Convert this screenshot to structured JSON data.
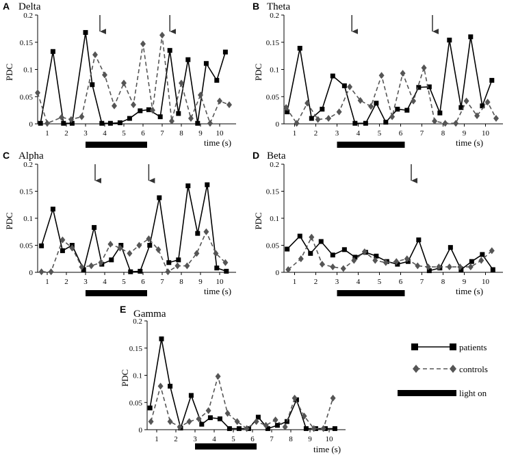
{
  "legend": {
    "patients": "patients",
    "controls": "controls",
    "light_on": "light on"
  },
  "chart_data": [
    {
      "type": "line",
      "panel": "A",
      "title": "Delta",
      "xlabel": "time (s)",
      "ylabel": "PDC",
      "ylim": [
        0,
        0.2
      ],
      "yticks": [
        "0",
        "0.05",
        "0.1",
        "0.15",
        "0.2"
      ],
      "xticks": [
        "1",
        "2",
        "3",
        "4",
        "5",
        "6",
        "7",
        "8",
        "9",
        "10"
      ],
      "xlim": [
        0,
        10
      ],
      "light_on": [
        3,
        6
      ],
      "arrows_x": [
        3.25,
        6.9
      ],
      "series": [
        {
          "name": "patients",
          "style": "solid",
          "marker": "square",
          "color": "#000000",
          "x": [
            0.15,
            0.8,
            1.35,
            1.8,
            2.5,
            2.85,
            3.35,
            3.8,
            4.3,
            4.8,
            5.35,
            5.8,
            6.4,
            6.9,
            7.35,
            7.85,
            8.35,
            8.8,
            9.35,
            9.8
          ],
          "y": [
            0.001,
            0.133,
            0.001,
            0.001,
            0.168,
            0.072,
            0.001,
            0.001,
            0.002,
            0.01,
            0.024,
            0.026,
            0.013,
            0.135,
            0.019,
            0.118,
            0.001,
            0.111,
            0.08,
            0.132
          ]
        },
        {
          "name": "controls",
          "style": "dashed",
          "marker": "diamond",
          "color": "#555555",
          "x": [
            0.0,
            0.5,
            1.25,
            1.75,
            2.3,
            3.0,
            3.5,
            4.0,
            4.5,
            5.0,
            5.5,
            6.0,
            6.5,
            7.0,
            7.5,
            8.0,
            8.5,
            9.0,
            9.5,
            10.0
          ],
          "y": [
            0.057,
            0.001,
            0.012,
            0.008,
            0.013,
            0.127,
            0.09,
            0.033,
            0.075,
            0.035,
            0.147,
            0.025,
            0.163,
            0.005,
            0.075,
            0.01,
            0.053,
            0.001,
            0.042,
            0.035
          ]
        }
      ]
    },
    {
      "type": "line",
      "panel": "B",
      "title": "Theta",
      "xlabel": "time (s)",
      "ylabel": "PDC",
      "ylim": [
        0,
        0.2
      ],
      "yticks": [
        "0",
        "0.05",
        "0.1",
        "0.15",
        "0.2"
      ],
      "xticks": [
        "1",
        "2",
        "3",
        "4",
        "5",
        "6",
        "7",
        "8",
        "9",
        "10"
      ],
      "xlim": [
        0,
        10
      ],
      "light_on": [
        3,
        6
      ],
      "arrows_x": [
        3.2,
        7.0
      ],
      "series": [
        {
          "name": "patients",
          "style": "solid",
          "marker": "square",
          "color": "#000000",
          "x": [
            0.15,
            0.75,
            1.3,
            1.8,
            2.3,
            2.85,
            3.35,
            3.85,
            4.35,
            4.8,
            5.35,
            5.8,
            6.35,
            6.85,
            7.35,
            7.8,
            8.35,
            8.8,
            9.35,
            9.8
          ],
          "y": [
            0.022,
            0.139,
            0.01,
            0.027,
            0.088,
            0.07,
            0.001,
            0.001,
            0.038,
            0.003,
            0.027,
            0.025,
            0.067,
            0.068,
            0.02,
            0.154,
            0.03,
            0.16,
            0.033,
            0.08
          ]
        },
        {
          "name": "controls",
          "style": "dashed",
          "marker": "diamond",
          "color": "#555555",
          "x": [
            0.1,
            0.6,
            1.1,
            1.6,
            2.1,
            2.6,
            3.1,
            3.6,
            4.1,
            4.6,
            5.1,
            5.6,
            6.1,
            6.6,
            7.1,
            7.6,
            8.1,
            8.6,
            9.1,
            9.6,
            10.0
          ],
          "y": [
            0.03,
            0.001,
            0.038,
            0.008,
            0.01,
            0.022,
            0.068,
            0.043,
            0.032,
            0.089,
            0.013,
            0.093,
            0.042,
            0.103,
            0.005,
            0.001,
            0.001,
            0.042,
            0.015,
            0.04,
            0.01
          ]
        }
      ]
    },
    {
      "type": "line",
      "panel": "C",
      "title": "Alpha",
      "xlabel": "time (s)",
      "ylabel": "PDC",
      "ylim": [
        0,
        0.2
      ],
      "yticks": [
        "0",
        "0.05",
        "0.1",
        "0.15",
        "0.2"
      ],
      "xticks": [
        "1",
        "2",
        "3",
        "4",
        "5",
        "6",
        "7",
        "8",
        "9",
        "10"
      ],
      "xlim": [
        0,
        10
      ],
      "light_on": [
        3,
        6
      ],
      "arrows_x": [
        3.0,
        5.8
      ],
      "series": [
        {
          "name": "patients",
          "style": "solid",
          "marker": "square",
          "color": "#000000",
          "x": [
            0.2,
            0.8,
            1.3,
            1.8,
            2.4,
            2.95,
            3.35,
            3.85,
            4.35,
            4.85,
            5.35,
            5.85,
            6.35,
            6.85,
            7.35,
            7.85,
            8.35,
            8.85,
            9.35,
            9.85
          ],
          "y": [
            0.049,
            0.117,
            0.04,
            0.05,
            0.005,
            0.083,
            0.015,
            0.023,
            0.05,
            0.001,
            0.002,
            0.05,
            0.138,
            0.018,
            0.023,
            0.16,
            0.072,
            0.162,
            0.008,
            0.002
          ]
        },
        {
          "name": "controls",
          "style": "dashed",
          "marker": "diamond",
          "color": "#555555",
          "x": [
            0.2,
            0.7,
            1.3,
            1.8,
            2.3,
            2.8,
            3.3,
            3.8,
            4.3,
            4.8,
            5.3,
            5.8,
            6.3,
            6.8,
            7.3,
            7.8,
            8.3,
            8.8,
            9.3,
            9.8
          ],
          "y": [
            0.001,
            0.001,
            0.06,
            0.045,
            0.01,
            0.012,
            0.018,
            0.052,
            0.045,
            0.035,
            0.05,
            0.062,
            0.042,
            0.001,
            0.012,
            0.012,
            0.035,
            0.075,
            0.035,
            0.018
          ]
        }
      ]
    },
    {
      "type": "line",
      "panel": "D",
      "title": "Beta",
      "xlabel": "time (s)",
      "ylabel": "PDC",
      "ylim": [
        0,
        0.2
      ],
      "yticks": [
        "0",
        "0.05",
        "0.1",
        "0.15",
        "0.2"
      ],
      "xticks": [
        "1",
        "2",
        "3",
        "4",
        "5",
        "6",
        "7",
        "8",
        "9",
        "10"
      ],
      "xlim": [
        0,
        10
      ],
      "light_on": [
        3,
        6
      ],
      "arrows_x": [
        6.0
      ],
      "series": [
        {
          "name": "patients",
          "style": "solid",
          "marker": "square",
          "color": "#000000",
          "x": [
            0.15,
            0.75,
            1.25,
            1.75,
            2.3,
            2.85,
            3.35,
            3.85,
            4.35,
            4.85,
            5.35,
            5.85,
            6.35,
            6.85,
            7.35,
            7.85,
            8.35,
            8.85,
            9.35,
            9.85
          ],
          "y": [
            0.043,
            0.067,
            0.035,
            0.057,
            0.032,
            0.042,
            0.028,
            0.037,
            0.03,
            0.02,
            0.015,
            0.02,
            0.06,
            0.003,
            0.008,
            0.046,
            0.005,
            0.02,
            0.033,
            0.005
          ]
        },
        {
          "name": "controls",
          "style": "dashed",
          "marker": "diamond",
          "color": "#555555",
          "x": [
            0.2,
            0.8,
            1.3,
            1.8,
            2.3,
            2.8,
            3.3,
            3.8,
            4.3,
            4.8,
            5.3,
            5.8,
            6.3,
            6.8,
            7.3,
            7.8,
            8.3,
            8.8,
            9.3,
            9.8
          ],
          "y": [
            0.005,
            0.025,
            0.065,
            0.015,
            0.01,
            0.007,
            0.022,
            0.038,
            0.022,
            0.018,
            0.02,
            0.025,
            0.012,
            0.01,
            0.01,
            0.01,
            0.01,
            0.01,
            0.022,
            0.04
          ]
        }
      ]
    },
    {
      "type": "line",
      "panel": "E",
      "title": "Gamma",
      "xlabel": "time (s)",
      "ylabel": "PDC",
      "ylim": [
        0,
        0.2
      ],
      "yticks": [
        "0",
        "0.05",
        "0.1",
        "0.15",
        "0.2"
      ],
      "xticks": [
        "1",
        "2",
        "3",
        "4",
        "5",
        "6",
        "7",
        "8",
        "9",
        "10"
      ],
      "xlim": [
        0,
        10
      ],
      "light_on": [
        3,
        6
      ],
      "arrows_x": [],
      "series": [
        {
          "name": "patients",
          "style": "solid",
          "marker": "square",
          "color": "#000000",
          "x": [
            0.15,
            0.75,
            1.2,
            1.75,
            2.3,
            2.85,
            3.3,
            3.8,
            4.3,
            4.8,
            5.3,
            5.8,
            6.3,
            6.8,
            7.3,
            7.8,
            8.3,
            8.8,
            9.3,
            9.8
          ],
          "y": [
            0.04,
            0.167,
            0.08,
            0.003,
            0.063,
            0.01,
            0.022,
            0.02,
            0.002,
            0.002,
            0.002,
            0.023,
            0.002,
            0.008,
            0.015,
            0.055,
            0.002,
            0.002,
            0.002,
            0.002
          ]
        },
        {
          "name": "controls",
          "style": "dashed",
          "marker": "diamond",
          "color": "#555555",
          "x": [
            0.2,
            0.7,
            1.2,
            1.7,
            2.2,
            2.7,
            3.2,
            3.7,
            4.2,
            4.7,
            5.2,
            5.7,
            6.2,
            6.7,
            7.2,
            7.7,
            8.2,
            8.7,
            9.2,
            9.7
          ],
          "y": [
            0.015,
            0.08,
            0.015,
            0.005,
            0.015,
            0.02,
            0.035,
            0.098,
            0.03,
            0.015,
            0.002,
            0.015,
            0.008,
            0.018,
            0.005,
            0.058,
            0.025,
            0.002,
            0.002,
            0.058
          ]
        }
      ]
    }
  ]
}
